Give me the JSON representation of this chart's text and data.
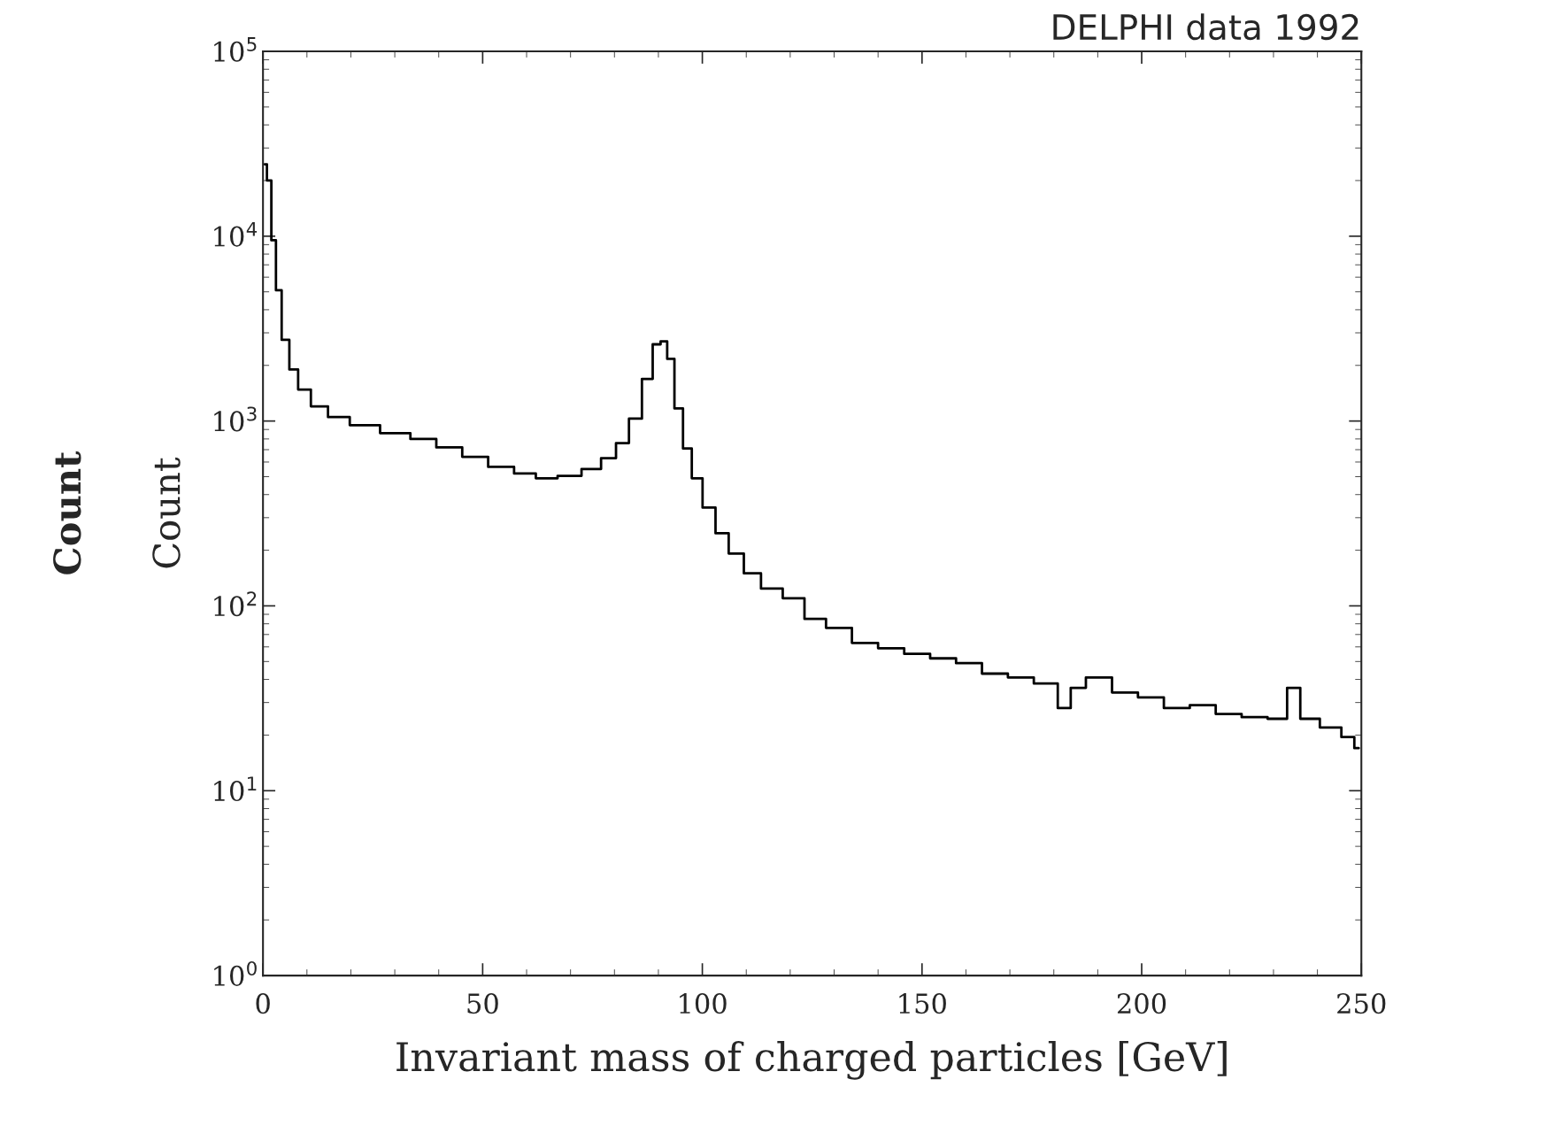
{
  "chart_data": {
    "type": "step",
    "xlabel": "Invariant mass of charged particles [GeV]",
    "ylabel": "Count",
    "annotations": [
      "DELPHI data 1992",
      "Count"
    ],
    "x": [
      0.4,
      1.4,
      2.4,
      3.5,
      5,
      7,
      9,
      12.8,
      16.8,
      22.7,
      30.6,
      36.5,
      42.4,
      48.3,
      54.2,
      60.1,
      64.1,
      70,
      75,
      78.9,
      81.8,
      84.8,
      87.7,
      89.7,
      91.3,
      92.7,
      94.6,
      96.6,
      98.6,
      101.5,
      104.5,
      107.5,
      111.4,
      115.3,
      121.3,
      125.2,
      131.1,
      137,
      143,
      148.9,
      154.8,
      160.7,
      166.6,
      172.5,
      178.4,
      183.4,
      184.3,
      190.3,
      196.2,
      202.1,
      208,
      213.9,
      219.8,
      225.7,
      231.6,
      234.6,
      237.6,
      243.5,
      247.4,
      249.4
    ],
    "series": [
      {
        "color": "#000000",
        "values": [
          24500,
          20000,
          9500,
          5100,
          2750,
          1900,
          1480,
          1200,
          1050,
          950,
          860,
          800,
          720,
          640,
          565,
          520,
          490,
          505,
          550,
          630,
          760,
          1030,
          1690,
          2600,
          2700,
          2170,
          1170,
          710,
          490,
          340,
          247,
          192,
          150,
          124,
          110,
          85,
          76,
          63,
          59,
          55,
          52,
          49,
          43,
          41,
          38,
          28,
          36,
          41,
          34,
          32,
          28,
          29,
          26,
          25,
          24.5,
          36,
          24.5,
          22,
          19.5,
          17
        ]
      }
    ],
    "log": "y",
    "xlim": [
      0,
      250
    ],
    "xticks": [
      0,
      50,
      100,
      150,
      200,
      250
    ],
    "ylim": [
      1,
      100000
    ],
    "yticks": [
      {
        "value": 1,
        "label": "10$^{0}$"
      },
      {
        "value": 10,
        "label": "10$^{1}$"
      },
      {
        "value": 100,
        "label": "10$^{2}$"
      },
      {
        "value": 1000,
        "label": "10$^{3}$"
      },
      {
        "value": 10000,
        "label": "10$^{4}$"
      },
      {
        "value": 100000,
        "label": "10$^{5}$"
      }
    ],
    "grid": false,
    "legend": false
  }
}
